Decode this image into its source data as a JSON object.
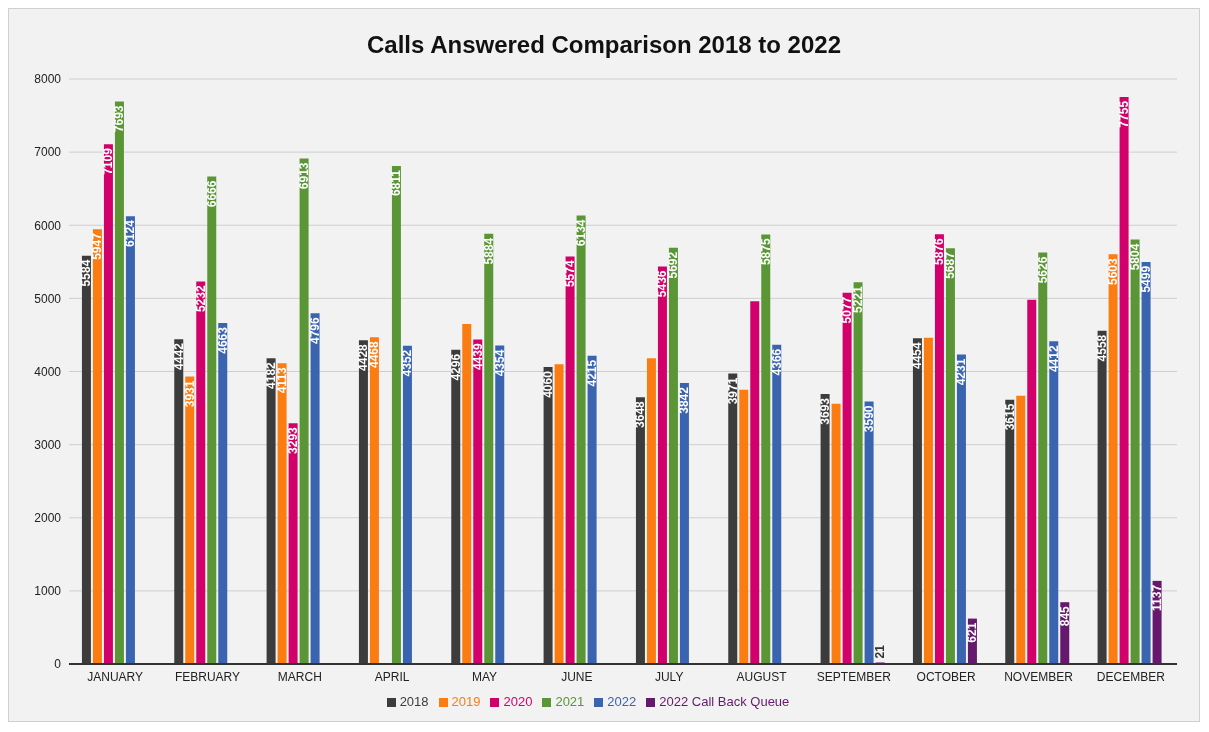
{
  "chart_data": {
    "type": "bar",
    "title": "Calls Answered Comparison 2018 to 2022",
    "categories": [
      "JANUARY",
      "FEBRUARY",
      "MARCH",
      "APRIL",
      "MAY",
      "JUNE",
      "JULY",
      "AUGUST",
      "SEPTEMBER",
      "OCTOBER",
      "NOVEMBER",
      "DECEMBER"
    ],
    "series": [
      {
        "name": "2018",
        "color": "#3c3c3c",
        "values": [
          5584,
          4442,
          4182,
          4428,
          4296,
          4060,
          3648,
          3971,
          3693,
          4454,
          3615,
          4558
        ],
        "value_labels": [
          "5584",
          "4442",
          "4182",
          "4428",
          "4296",
          "4060",
          "3648",
          "3971",
          "3693",
          "4454",
          "3615",
          "4558"
        ]
      },
      {
        "name": "2019",
        "color": "#fb7d12",
        "values": [
          5947,
          3931,
          4113,
          4468,
          4650,
          4100,
          4180,
          3750,
          3560,
          4460,
          3670,
          5603
        ],
        "value_labels": [
          "5947",
          "3931",
          "4113",
          "4468",
          null,
          null,
          null,
          null,
          null,
          null,
          null,
          "5603"
        ]
      },
      {
        "name": "2020",
        "color": "#d2006a",
        "values": [
          7109,
          5232,
          3293,
          null,
          4439,
          5574,
          5436,
          4960,
          5077,
          5876,
          4980,
          7755
        ],
        "value_labels": [
          "7109",
          "5232",
          "3293",
          null,
          "4439",
          "5574",
          "5436",
          null,
          "5077",
          "5876",
          null,
          "7755"
        ]
      },
      {
        "name": "2021",
        "color": "#5a9635",
        "values": [
          7693,
          6666,
          6913,
          6811,
          5884,
          6134,
          5692,
          5875,
          5221,
          5687,
          5626,
          5804
        ],
        "value_labels": [
          "7693",
          "6666",
          "6913",
          "6811",
          "5884",
          "6134",
          "5692",
          "5875",
          "5221",
          "5687",
          "5626",
          "5804"
        ]
      },
      {
        "name": "2022",
        "color": "#3a64b0",
        "values": [
          6124,
          4663,
          4796,
          4352,
          4354,
          4215,
          3842,
          4366,
          3590,
          4231,
          4412,
          5499
        ],
        "value_labels": [
          "6124",
          "4663",
          "4796",
          "4352",
          "4354",
          "4215",
          "3842",
          "4366",
          "3590",
          "4231",
          "4412",
          "5499"
        ]
      },
      {
        "name": "2022 Call Back Queue",
        "color": "#66186c",
        "values": [
          null,
          null,
          null,
          null,
          null,
          null,
          null,
          null,
          21,
          621,
          845,
          1137
        ],
        "value_labels": [
          null,
          null,
          null,
          null,
          null,
          null,
          null,
          null,
          "21",
          "621",
          "845",
          "1137"
        ]
      }
    ],
    "ylim": [
      0,
      8000
    ],
    "yticks": [
      0,
      1000,
      2000,
      3000,
      4000,
      5000,
      6000,
      7000,
      8000
    ],
    "grid": "y",
    "legend": "bottom"
  }
}
